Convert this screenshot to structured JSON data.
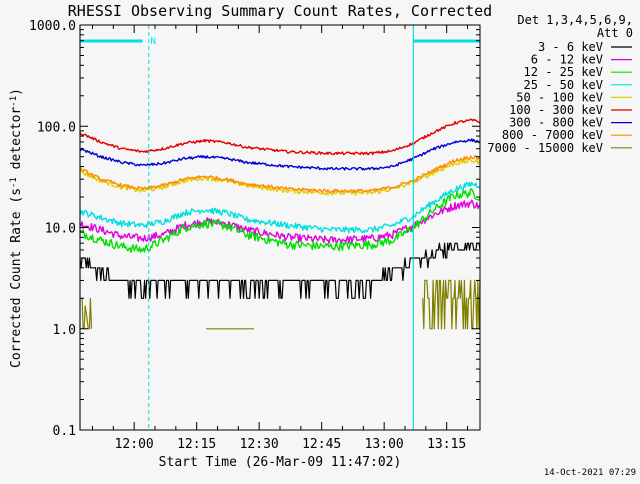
{
  "chart_data": {
    "type": "line",
    "title": "RHESSI Observing Summary Count Rates, Corrected",
    "xlabel": "Start Time (26-Mar-09 11:47:02)",
    "ylabel": "Corrected Count Rate (s-1 detector-1)",
    "ylabel_parts": {
      "pre": "Corrected Count Rate (s",
      "sup1": "-1",
      "mid": " detector",
      "sup2": "-1",
      "post": ")"
    },
    "yscale": "log",
    "ylim": [
      0.1,
      1000.0
    ],
    "y_ticks": [
      "1000.0",
      "100.0",
      "10.0",
      "1.0",
      "0.1"
    ],
    "x_ticks": [
      "12:00",
      "12:15",
      "12:30",
      "12:45",
      "13:00",
      "13:15"
    ],
    "xlim_min": [
      0,
      96
    ],
    "x_tick_min": [
      13,
      28,
      43,
      58,
      73,
      88
    ],
    "legend_header": [
      "Det 1,3,4,5,6,9,",
      "Att 0"
    ],
    "timestamp": "14-Oct-2021 07:29",
    "night_marker_label": "N",
    "attenuator_lines_min": [
      0,
      80
    ],
    "night_lines_min": [
      16.5,
      96
    ],
    "night_bar_min": [
      [
        0,
        15
      ],
      [
        80,
        96
      ]
    ],
    "series": [
      {
        "name": "3 - 6 keV",
        "color": "#000000",
        "x": [
          0,
          5,
          10,
          20,
          30,
          40,
          50,
          60,
          70,
          78,
          82,
          88,
          94,
          96
        ],
        "y": [
          4.5,
          3.5,
          2.6,
          2.6,
          2.8,
          2.6,
          2.6,
          2.6,
          2.6,
          4.0,
          4.7,
          6.0,
          7.0,
          6.5
        ]
      },
      {
        "name": "6 - 12 keV",
        "color": "#e000e0",
        "x": [
          0,
          5,
          10,
          15,
          20,
          25,
          30,
          35,
          40,
          50,
          60,
          70,
          75,
          80,
          85,
          90,
          94,
          96
        ],
        "y": [
          11,
          9.5,
          8.2,
          7.8,
          8.5,
          10.5,
          11.5,
          11,
          9.5,
          8.0,
          7.5,
          7.8,
          8.5,
          10.5,
          13.5,
          16.5,
          17.5,
          16
        ]
      },
      {
        "name": "12 - 25 keV",
        "color": "#00e000",
        "x": [
          0,
          5,
          10,
          15,
          20,
          25,
          30,
          35,
          40,
          50,
          60,
          70,
          75,
          80,
          85,
          90,
          94,
          96
        ],
        "y": [
          9.0,
          7.5,
          6.5,
          6.0,
          7.5,
          10,
          11,
          10.5,
          8.5,
          6.8,
          6.5,
          6.8,
          7.5,
          10,
          15,
          21,
          22,
          20
        ]
      },
      {
        "name": "25 - 50 keV",
        "color": "#00e0e0",
        "x": [
          0,
          5,
          10,
          15,
          20,
          25,
          30,
          35,
          40,
          50,
          60,
          70,
          75,
          80,
          85,
          90,
          94,
          96
        ],
        "y": [
          14.5,
          12.5,
          11,
          10.5,
          11.5,
          14,
          15,
          14,
          12,
          10.5,
          9.5,
          9.5,
          10.5,
          13,
          18,
          24,
          27,
          26
        ]
      },
      {
        "name": "50 - 100 keV",
        "color": "#e0d000",
        "x": [
          0,
          5,
          10,
          15,
          20,
          25,
          30,
          35,
          40,
          50,
          60,
          70,
          75,
          80,
          85,
          90,
          94,
          96
        ],
        "y": [
          36,
          29,
          25,
          23,
          25,
          29,
          31,
          29,
          26,
          23,
          22,
          22,
          24,
          28,
          35,
          43,
          46,
          44
        ]
      },
      {
        "name": "100 - 300 keV",
        "color": "#e00000",
        "x": [
          0,
          5,
          10,
          15,
          20,
          25,
          30,
          35,
          40,
          50,
          60,
          70,
          75,
          80,
          85,
          90,
          94,
          96
        ],
        "y": [
          86,
          70,
          60,
          56,
          60,
          68,
          72,
          69,
          62,
          56,
          54,
          54,
          57,
          68,
          88,
          108,
          115,
          110
        ]
      },
      {
        "name": "300 - 800 keV",
        "color": "#0000d0",
        "x": [
          0,
          5,
          10,
          15,
          20,
          25,
          30,
          35,
          40,
          50,
          60,
          70,
          75,
          80,
          85,
          90,
          94,
          96
        ],
        "y": [
          60,
          50,
          44,
          41,
          43,
          48,
          50,
          48,
          44,
          40,
          38,
          38,
          40,
          48,
          60,
          70,
          73,
          70
        ]
      },
      {
        "name": "800 - 7000 keV",
        "color": "#ff8c00",
        "x": [
          0,
          5,
          10,
          15,
          20,
          25,
          30,
          35,
          40,
          50,
          60,
          70,
          75,
          80,
          85,
          90,
          94,
          96
        ],
        "y": [
          38,
          30,
          26,
          24,
          26,
          30,
          32,
          30,
          27,
          24,
          23,
          23,
          25,
          29,
          37,
          46,
          50,
          48
        ]
      },
      {
        "name": "7000 - 15000 keV",
        "color": "#808000",
        "x": [
          0,
          1,
          2,
          3,
          30,
          42,
          80,
          82,
          86,
          90,
          94,
          96
        ],
        "y": [
          2.0,
          2.0,
          1.0,
          1.0,
          1.0,
          1.0,
          1.0,
          1.8,
          2.6,
          3.0,
          2.6,
          1.0
        ]
      }
    ]
  }
}
